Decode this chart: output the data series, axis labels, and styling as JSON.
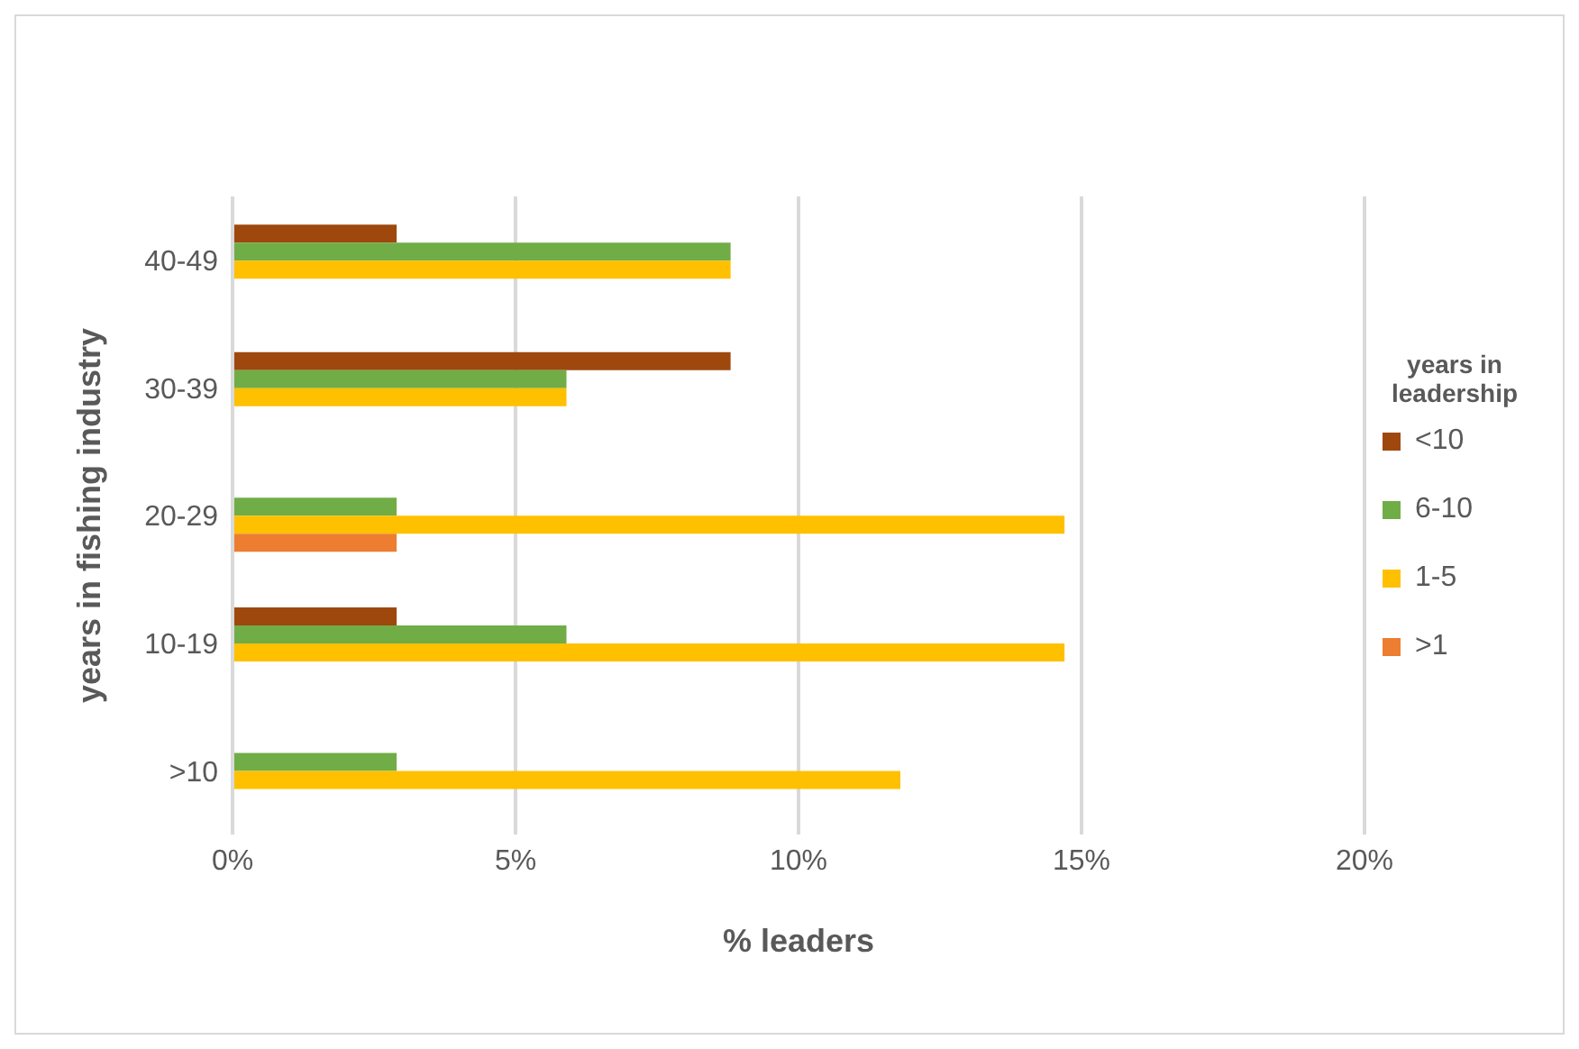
{
  "chart_data": {
    "type": "bar",
    "orientation": "horizontal",
    "categories": [
      "40-49",
      "30-39",
      "20-29",
      "10-19",
      ">10"
    ],
    "series": [
      {
        "name": "<10",
        "color": "#9e480e",
        "values": [
          2.9,
          8.8,
          null,
          2.9,
          null
        ]
      },
      {
        "name": "6-10",
        "color": "#70ad47",
        "values": [
          8.8,
          5.9,
          2.9,
          5.9,
          2.9
        ]
      },
      {
        "name": "1-5",
        "color": "#ffc000",
        "values": [
          8.8,
          5.9,
          14.7,
          14.7,
          11.8
        ]
      },
      {
        "name": ">1",
        "color": "#ed7d31",
        "values": [
          null,
          null,
          2.9,
          null,
          null
        ]
      }
    ],
    "xlim": [
      0,
      20
    ],
    "xticks": [
      {
        "value": 0,
        "label": "0%"
      },
      {
        "value": 5,
        "label": "5%"
      },
      {
        "value": 10,
        "label": "10%"
      },
      {
        "value": 15,
        "label": "15%"
      },
      {
        "value": 20,
        "label": "20%"
      }
    ],
    "xlabel": "% leaders",
    "ylabel": "years in fishing industry",
    "legend_title": "years in leadership",
    "legend": "right",
    "grid": "x"
  }
}
